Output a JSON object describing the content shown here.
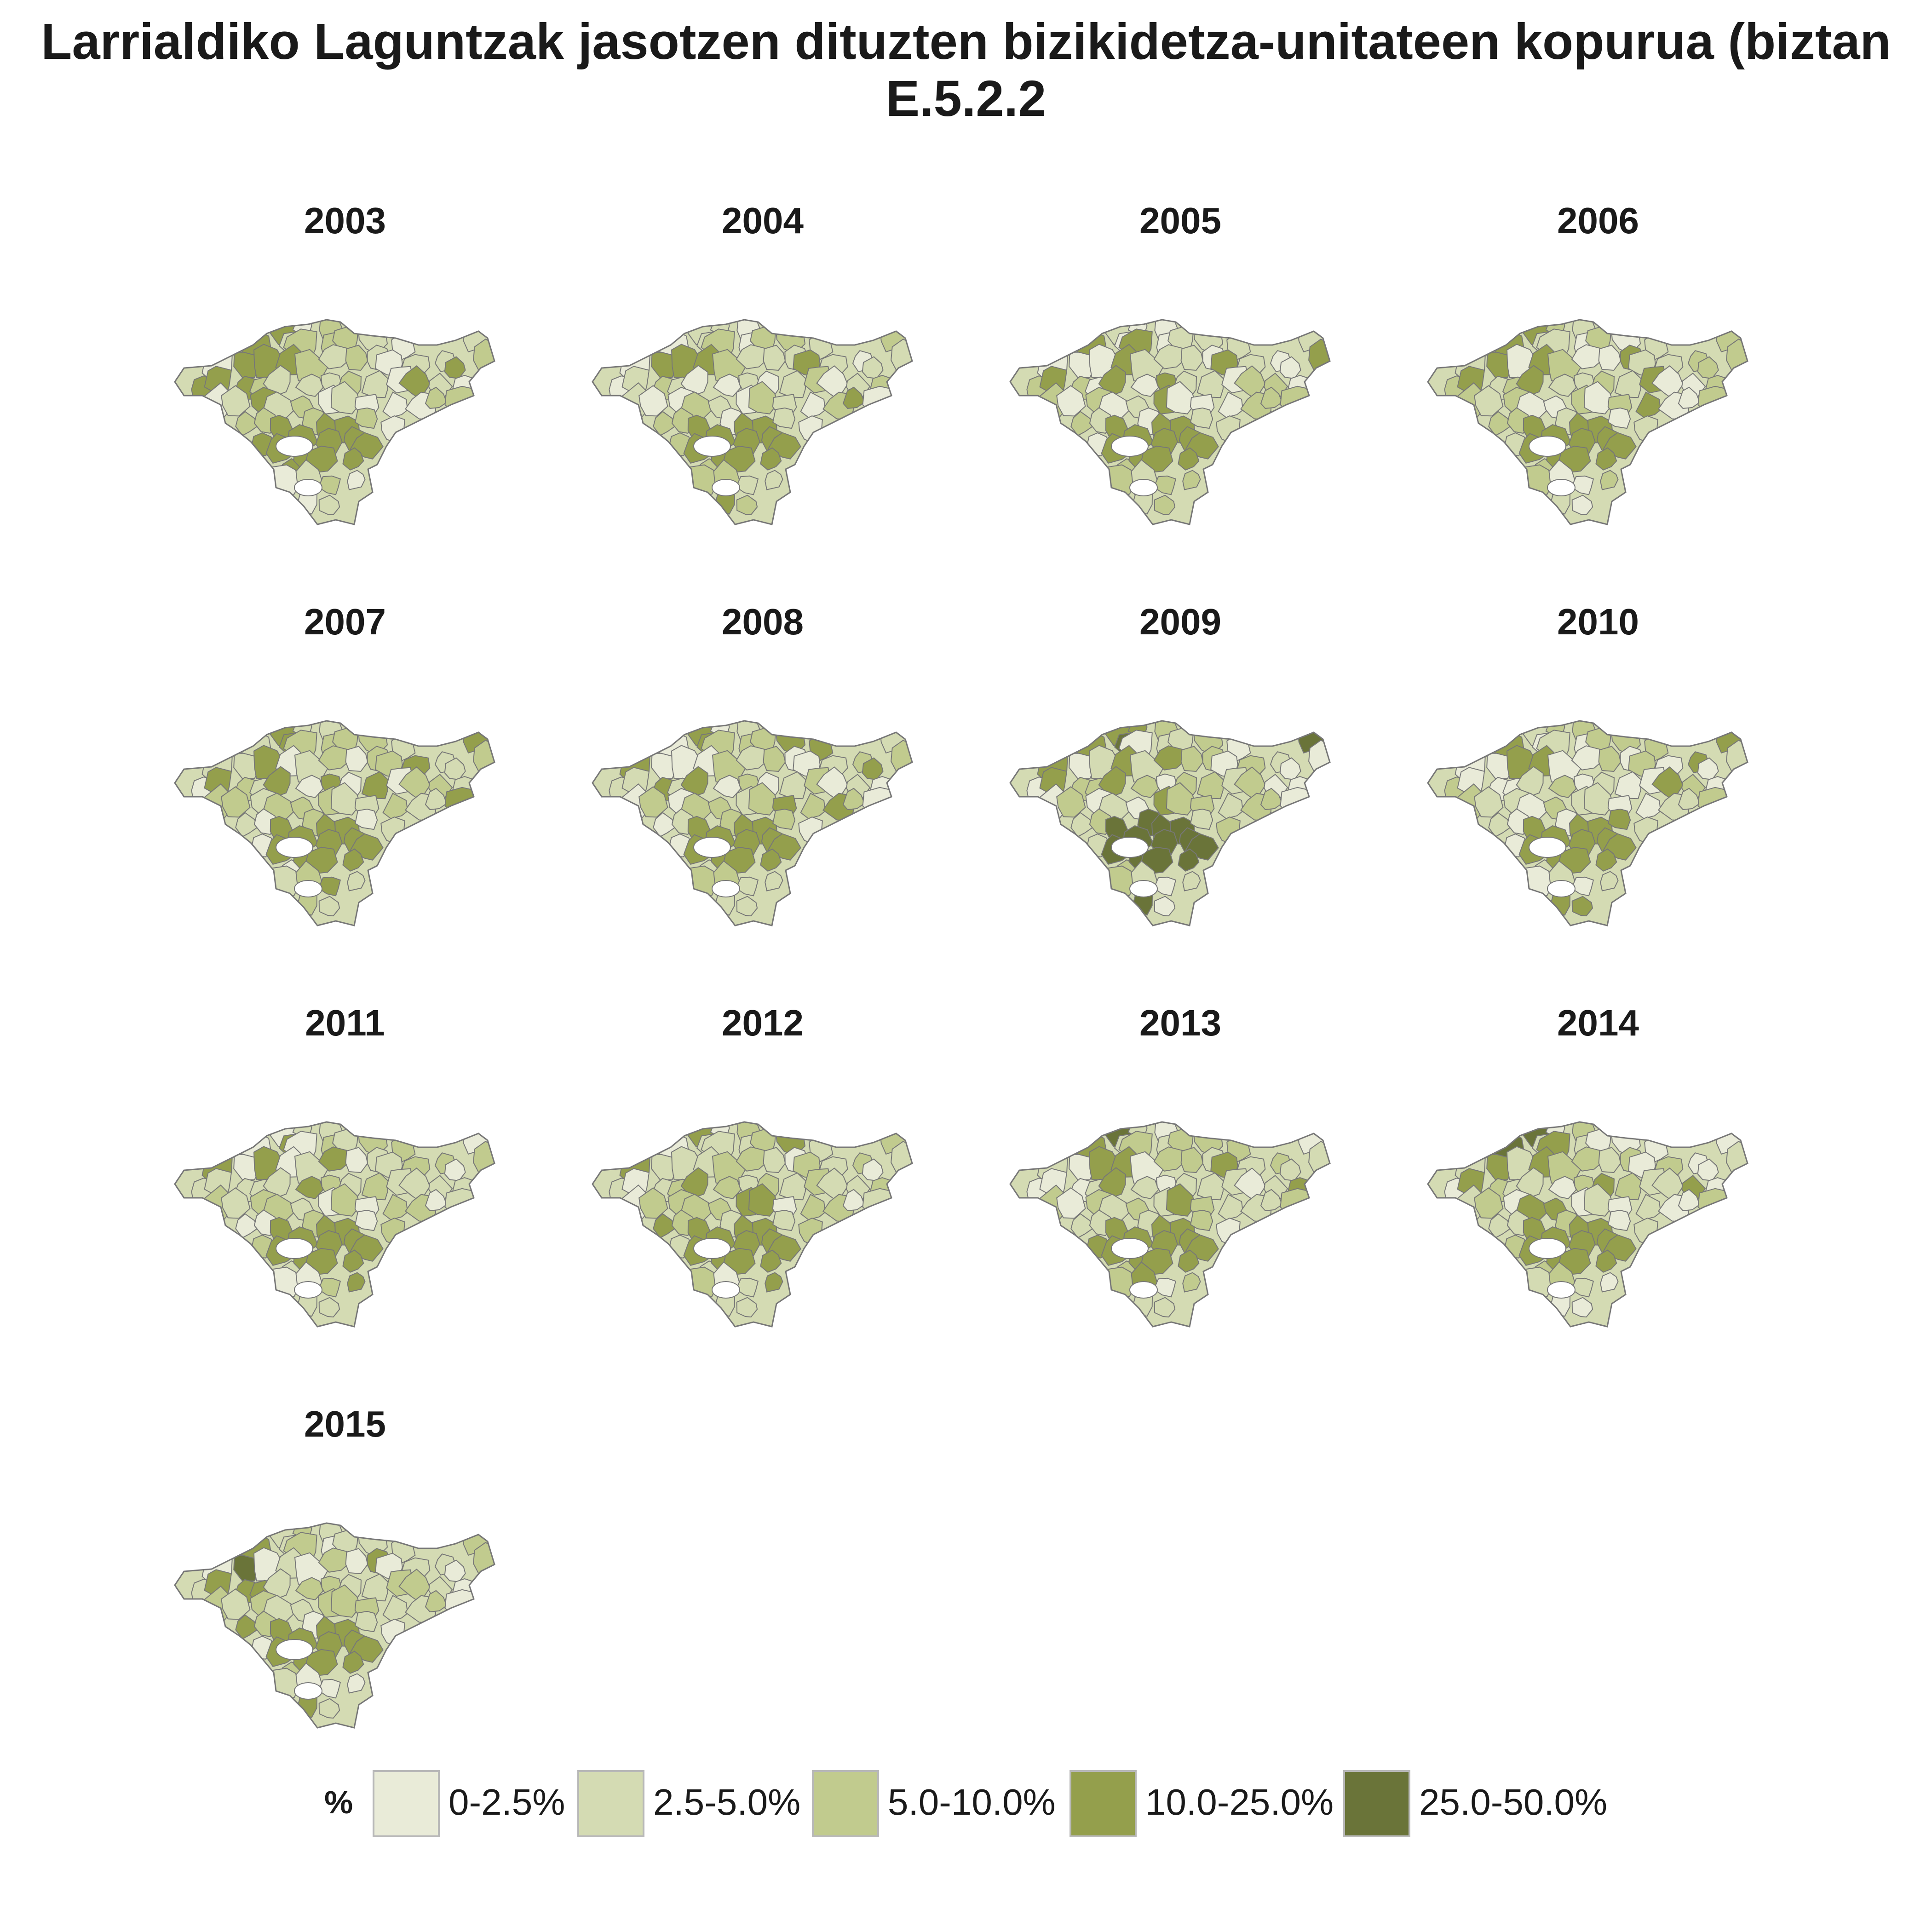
{
  "title": {
    "line1": "Larrialdiko Laguntzak jasotzen dituzten bizikidetza-unitateen kopurua (biztan",
    "line2": "E.5.2.2"
  },
  "legend": {
    "title": "%",
    "classes": [
      {
        "label": "0-2.5%",
        "color": "#e9ebd8"
      },
      {
        "label": "2.5-5.0%",
        "color": "#d4dbb3"
      },
      {
        "label": "5.0-10.0%",
        "color": "#c1cb8e"
      },
      {
        "label": "10.0-25.0%",
        "color": "#949f4c"
      },
      {
        "label": "25.0-50.0%",
        "color": "#6a7439"
      }
    ]
  },
  "panels": [
    {
      "year": "2003"
    },
    {
      "year": "2004"
    },
    {
      "year": "2005"
    },
    {
      "year": "2006"
    },
    {
      "year": "2007"
    },
    {
      "year": "2008"
    },
    {
      "year": "2009"
    },
    {
      "year": "2010"
    },
    {
      "year": "2011"
    },
    {
      "year": "2012"
    },
    {
      "year": "2013"
    },
    {
      "year": "2014"
    },
    {
      "year": "2015"
    }
  ],
  "map_style": {
    "border_color": "#777777",
    "background": "#ffffff"
  }
}
